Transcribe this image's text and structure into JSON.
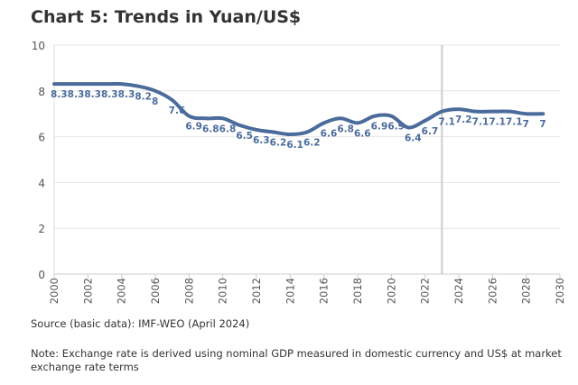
{
  "chart_data": {
    "type": "line",
    "title": "Chart 5: Trends in Yuan/US$",
    "x": [
      2000,
      2001,
      2002,
      2003,
      2004,
      2005,
      2006,
      2007,
      2008,
      2009,
      2010,
      2011,
      2012,
      2013,
      2014,
      2015,
      2016,
      2017,
      2018,
      2019,
      2020,
      2021,
      2022,
      2023,
      2024,
      2025,
      2026,
      2027,
      2028,
      2029
    ],
    "values": [
      8.3,
      8.3,
      8.3,
      8.3,
      8.3,
      8.2,
      8,
      7.6,
      6.9,
      6.8,
      6.8,
      6.5,
      6.3,
      6.2,
      6.1,
      6.2,
      6.6,
      6.8,
      6.6,
      6.9,
      6.9,
      6.4,
      6.7,
      7.1,
      7.2,
      7.1,
      7.1,
      7.1,
      7,
      7
    ],
    "xlim": [
      2000,
      2030
    ],
    "ylim": [
      0,
      10
    ],
    "xticks": [
      2000,
      2002,
      2004,
      2006,
      2008,
      2010,
      2012,
      2014,
      2016,
      2018,
      2020,
      2022,
      2024,
      2026,
      2028,
      2030
    ],
    "yticks": [
      0,
      2,
      4,
      6,
      8,
      10
    ],
    "vline_x": 2023,
    "grid": "horizontal",
    "line_color": "#4a6b9c",
    "label_color": "#4a6b9c",
    "source": "Source (basic data): IMF-WEO (April 2024)",
    "note": "Note: Exchange rate is derived using nominal GDP measured in domestic currency and US$ at market exchange rate terms"
  }
}
